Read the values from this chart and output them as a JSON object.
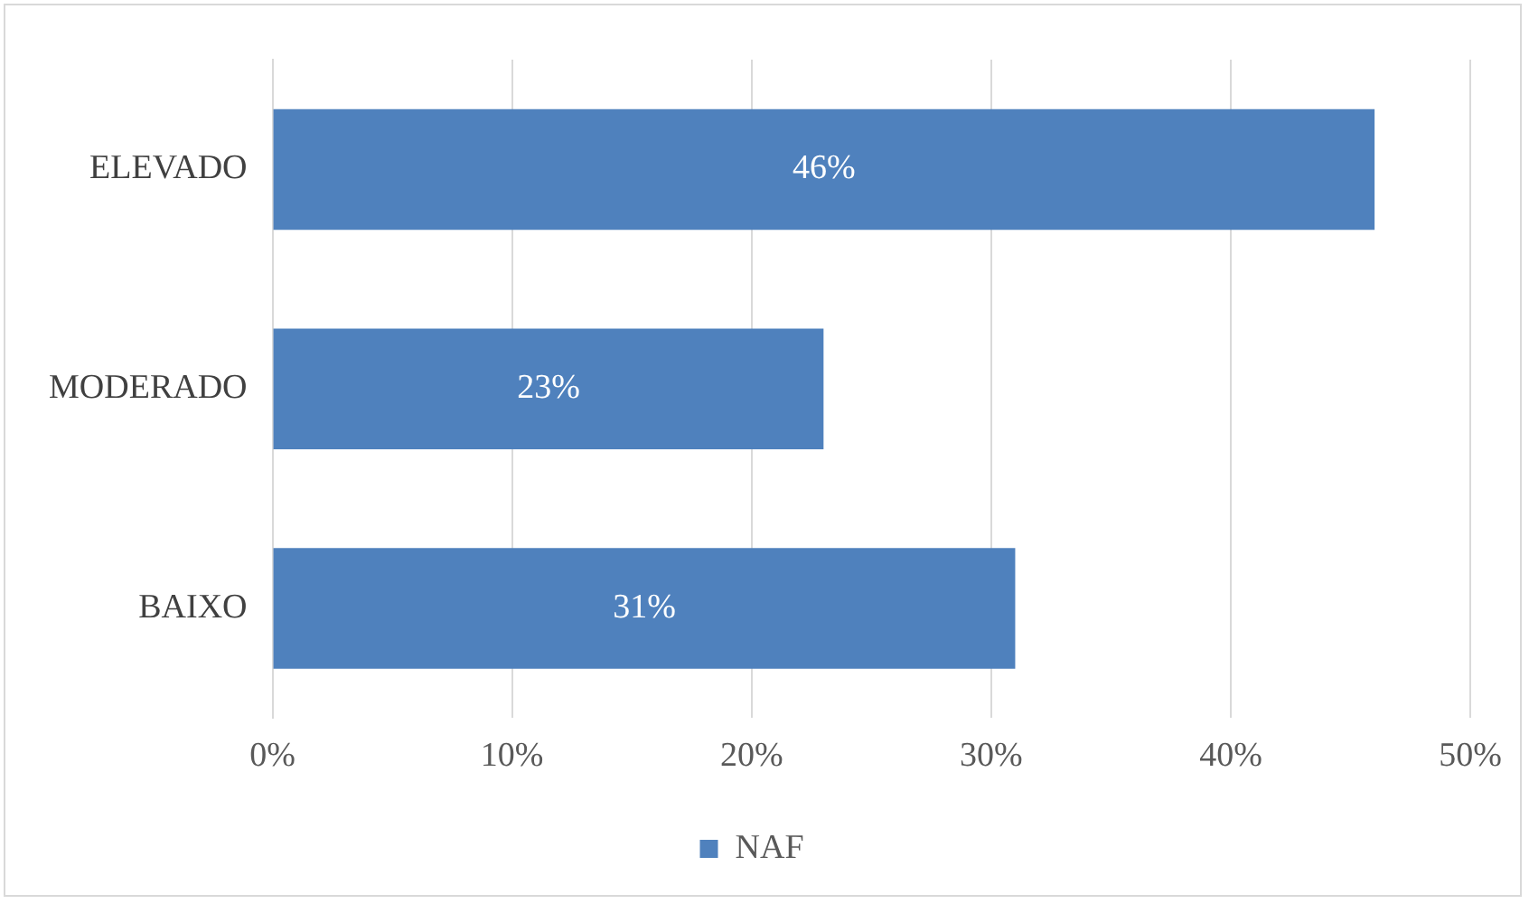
{
  "chart_data": {
    "type": "bar",
    "orientation": "horizontal",
    "categories": [
      "ELEVADO",
      "MODERADO",
      "BAIXO"
    ],
    "series": [
      {
        "name": "NAF",
        "color": "#4f81bd",
        "values": [
          46,
          23,
          31
        ],
        "value_labels": [
          "46%",
          "23%",
          "31%"
        ]
      }
    ],
    "xlim": [
      0,
      50
    ],
    "xticks": [
      {
        "value": 0,
        "label": "0%"
      },
      {
        "value": 10,
        "label": "10%"
      },
      {
        "value": 20,
        "label": "20%"
      },
      {
        "value": 30,
        "label": "30%"
      },
      {
        "value": 40,
        "label": "40%"
      },
      {
        "value": 50,
        "label": "50%"
      }
    ],
    "grid": "x",
    "legend": "bottom"
  }
}
